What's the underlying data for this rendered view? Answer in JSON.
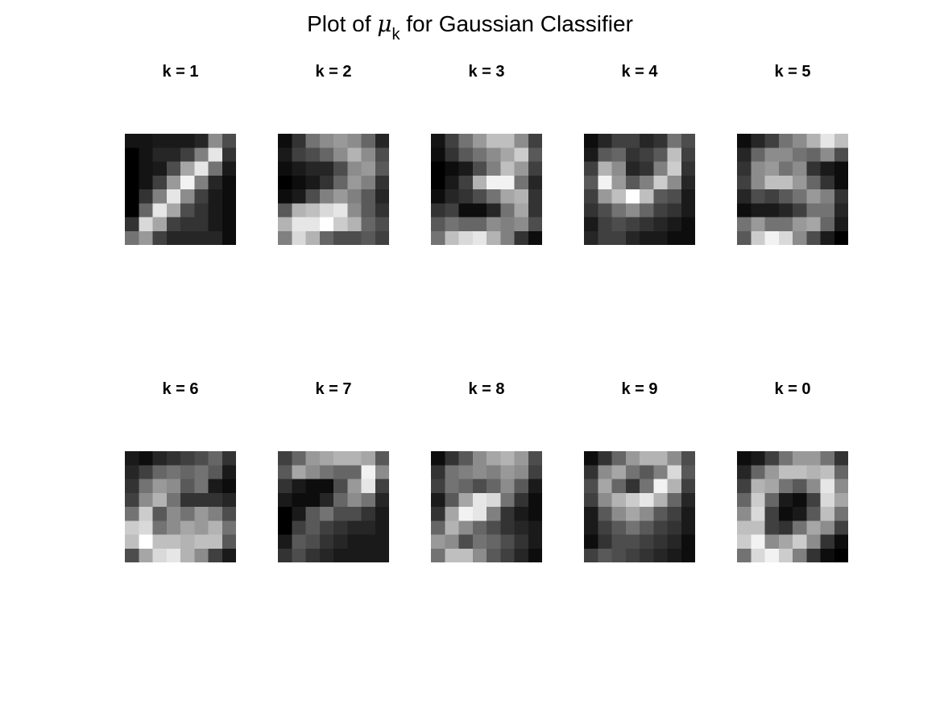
{
  "figure": {
    "title": {
      "prefix": "Plot of ",
      "symbol": "μ",
      "subscript": "k",
      "suffix": " for Gaussian Classifier"
    }
  },
  "chart_data": {
    "type": "heatmap",
    "title": "Plot of μk for Gaussian Classifier",
    "colormap": "gray",
    "value_range": [
      0,
      1
    ],
    "layout": {
      "rows": 2,
      "cols": 5
    },
    "panels": [
      {
        "label": "k = 1",
        "pixels": [
          [
            0.08,
            0.08,
            0.1,
            0.1,
            0.1,
            0.15,
            0.55,
            0.3
          ],
          [
            0.0,
            0.08,
            0.15,
            0.15,
            0.25,
            0.5,
            0.9,
            0.2
          ],
          [
            0.0,
            0.08,
            0.1,
            0.3,
            0.65,
            0.9,
            0.45,
            0.1
          ],
          [
            0.0,
            0.08,
            0.25,
            0.6,
            0.95,
            0.5,
            0.15,
            0.05
          ],
          [
            0.0,
            0.2,
            0.5,
            0.9,
            0.55,
            0.25,
            0.1,
            0.05
          ],
          [
            0.0,
            0.4,
            0.9,
            0.65,
            0.3,
            0.2,
            0.1,
            0.05
          ],
          [
            0.2,
            0.85,
            0.65,
            0.25,
            0.2,
            0.2,
            0.1,
            0.05
          ],
          [
            0.45,
            0.6,
            0.25,
            0.15,
            0.15,
            0.15,
            0.15,
            0.05
          ]
        ]
      },
      {
        "label": "k = 2",
        "pixels": [
          [
            0.05,
            0.2,
            0.45,
            0.55,
            0.6,
            0.55,
            0.4,
            0.15
          ],
          [
            0.1,
            0.25,
            0.3,
            0.4,
            0.55,
            0.7,
            0.55,
            0.3
          ],
          [
            0.05,
            0.1,
            0.15,
            0.15,
            0.3,
            0.55,
            0.6,
            0.35
          ],
          [
            0.0,
            0.05,
            0.1,
            0.2,
            0.4,
            0.6,
            0.5,
            0.2
          ],
          [
            0.05,
            0.1,
            0.3,
            0.5,
            0.6,
            0.5,
            0.35,
            0.15
          ],
          [
            0.35,
            0.7,
            0.75,
            0.85,
            0.9,
            0.55,
            0.35,
            0.2
          ],
          [
            0.7,
            0.9,
            0.9,
            1.0,
            0.8,
            0.7,
            0.4,
            0.3
          ],
          [
            0.5,
            0.85,
            0.7,
            0.4,
            0.3,
            0.3,
            0.35,
            0.25
          ]
        ]
      },
      {
        "label": "k = 3",
        "pixels": [
          [
            0.08,
            0.25,
            0.45,
            0.6,
            0.75,
            0.75,
            0.55,
            0.25
          ],
          [
            0.05,
            0.2,
            0.35,
            0.45,
            0.55,
            0.65,
            0.8,
            0.35
          ],
          [
            0.0,
            0.05,
            0.1,
            0.3,
            0.5,
            0.75,
            0.6,
            0.25
          ],
          [
            0.0,
            0.1,
            0.25,
            0.7,
            0.95,
            0.95,
            0.45,
            0.15
          ],
          [
            0.05,
            0.15,
            0.2,
            0.3,
            0.45,
            0.65,
            0.7,
            0.2
          ],
          [
            0.2,
            0.25,
            0.05,
            0.05,
            0.15,
            0.45,
            0.65,
            0.2
          ],
          [
            0.35,
            0.45,
            0.4,
            0.4,
            0.55,
            0.5,
            0.55,
            0.3
          ],
          [
            0.45,
            0.75,
            0.85,
            0.9,
            0.7,
            0.5,
            0.2,
            0.05
          ]
        ]
      },
      {
        "label": "k = 4",
        "pixels": [
          [
            0.05,
            0.15,
            0.25,
            0.25,
            0.15,
            0.2,
            0.45,
            0.3
          ],
          [
            0.1,
            0.35,
            0.4,
            0.2,
            0.25,
            0.35,
            0.75,
            0.25
          ],
          [
            0.25,
            0.7,
            0.55,
            0.15,
            0.2,
            0.5,
            0.8,
            0.2
          ],
          [
            0.35,
            0.95,
            0.6,
            0.35,
            0.5,
            0.8,
            0.55,
            0.15
          ],
          [
            0.25,
            0.6,
            0.75,
            1.0,
            0.75,
            0.35,
            0.3,
            0.1
          ],
          [
            0.2,
            0.3,
            0.45,
            0.55,
            0.4,
            0.25,
            0.2,
            0.1
          ],
          [
            0.1,
            0.25,
            0.3,
            0.25,
            0.2,
            0.15,
            0.1,
            0.05
          ],
          [
            0.15,
            0.25,
            0.25,
            0.15,
            0.1,
            0.1,
            0.05,
            0.05
          ]
        ]
      },
      {
        "label": "k = 5",
        "pixels": [
          [
            0.05,
            0.15,
            0.25,
            0.45,
            0.55,
            0.7,
            0.9,
            0.75
          ],
          [
            0.15,
            0.4,
            0.55,
            0.55,
            0.45,
            0.4,
            0.55,
            0.3
          ],
          [
            0.2,
            0.55,
            0.6,
            0.45,
            0.55,
            0.2,
            0.1,
            0.05
          ],
          [
            0.25,
            0.55,
            0.75,
            0.75,
            0.6,
            0.4,
            0.2,
            0.05
          ],
          [
            0.15,
            0.3,
            0.25,
            0.35,
            0.45,
            0.6,
            0.5,
            0.2
          ],
          [
            0.05,
            0.1,
            0.1,
            0.15,
            0.25,
            0.45,
            0.45,
            0.15
          ],
          [
            0.45,
            0.6,
            0.45,
            0.45,
            0.6,
            0.65,
            0.4,
            0.1
          ],
          [
            0.35,
            0.8,
            0.95,
            0.85,
            0.55,
            0.3,
            0.1,
            0.0
          ]
        ]
      },
      {
        "label": "k = 6",
        "pixels": [
          [
            0.1,
            0.05,
            0.15,
            0.2,
            0.25,
            0.3,
            0.4,
            0.2
          ],
          [
            0.15,
            0.25,
            0.4,
            0.45,
            0.4,
            0.45,
            0.35,
            0.1
          ],
          [
            0.2,
            0.45,
            0.6,
            0.55,
            0.35,
            0.45,
            0.1,
            0.05
          ],
          [
            0.25,
            0.55,
            0.7,
            0.45,
            0.2,
            0.2,
            0.2,
            0.15
          ],
          [
            0.45,
            0.8,
            0.35,
            0.55,
            0.45,
            0.6,
            0.5,
            0.3
          ],
          [
            0.8,
            0.85,
            0.45,
            0.55,
            0.65,
            0.6,
            0.7,
            0.45
          ],
          [
            0.75,
            1.0,
            0.75,
            0.75,
            0.7,
            0.75,
            0.75,
            0.35
          ],
          [
            0.3,
            0.65,
            0.85,
            0.9,
            0.7,
            0.55,
            0.25,
            0.1
          ]
        ]
      },
      {
        "label": "k = 7",
        "pixels": [
          [
            0.25,
            0.4,
            0.6,
            0.65,
            0.7,
            0.7,
            0.65,
            0.35
          ],
          [
            0.35,
            0.65,
            0.55,
            0.45,
            0.4,
            0.4,
            0.95,
            0.55
          ],
          [
            0.2,
            0.1,
            0.05,
            0.05,
            0.3,
            0.6,
            0.9,
            0.25
          ],
          [
            0.1,
            0.05,
            0.05,
            0.15,
            0.4,
            0.55,
            0.45,
            0.15
          ],
          [
            0.0,
            0.1,
            0.35,
            0.45,
            0.3,
            0.3,
            0.2,
            0.1
          ],
          [
            0.0,
            0.25,
            0.35,
            0.25,
            0.2,
            0.15,
            0.15,
            0.1
          ],
          [
            0.1,
            0.35,
            0.3,
            0.2,
            0.15,
            0.1,
            0.1,
            0.1
          ],
          [
            0.2,
            0.3,
            0.2,
            0.15,
            0.1,
            0.1,
            0.1,
            0.1
          ]
        ]
      },
      {
        "label": "k = 8",
        "pixels": [
          [
            0.05,
            0.2,
            0.35,
            0.55,
            0.65,
            0.7,
            0.6,
            0.3
          ],
          [
            0.2,
            0.45,
            0.5,
            0.55,
            0.5,
            0.6,
            0.55,
            0.25
          ],
          [
            0.25,
            0.45,
            0.4,
            0.3,
            0.4,
            0.55,
            0.35,
            0.1
          ],
          [
            0.1,
            0.35,
            0.65,
            0.9,
            0.85,
            0.45,
            0.2,
            0.05
          ],
          [
            0.2,
            0.65,
            0.95,
            0.9,
            0.5,
            0.2,
            0.1,
            0.05
          ],
          [
            0.4,
            0.7,
            0.55,
            0.4,
            0.3,
            0.2,
            0.15,
            0.1
          ],
          [
            0.6,
            0.55,
            0.3,
            0.45,
            0.4,
            0.3,
            0.2,
            0.1
          ],
          [
            0.45,
            0.75,
            0.75,
            0.55,
            0.35,
            0.25,
            0.15,
            0.05
          ]
        ]
      },
      {
        "label": "k = 9",
        "pixels": [
          [
            0.05,
            0.2,
            0.4,
            0.6,
            0.7,
            0.7,
            0.55,
            0.3
          ],
          [
            0.2,
            0.55,
            0.65,
            0.45,
            0.35,
            0.5,
            0.85,
            0.35
          ],
          [
            0.3,
            0.65,
            0.4,
            0.2,
            0.45,
            0.95,
            0.7,
            0.25
          ],
          [
            0.25,
            0.55,
            0.7,
            0.8,
            0.9,
            0.7,
            0.4,
            0.15
          ],
          [
            0.1,
            0.35,
            0.55,
            0.65,
            0.55,
            0.35,
            0.25,
            0.1
          ],
          [
            0.1,
            0.25,
            0.35,
            0.45,
            0.35,
            0.25,
            0.2,
            0.1
          ],
          [
            0.05,
            0.2,
            0.3,
            0.3,
            0.25,
            0.2,
            0.15,
            0.05
          ],
          [
            0.25,
            0.35,
            0.3,
            0.25,
            0.2,
            0.15,
            0.1,
            0.05
          ]
        ]
      },
      {
        "label": "k = 0",
        "pixels": [
          [
            0.05,
            0.1,
            0.25,
            0.45,
            0.6,
            0.6,
            0.45,
            0.2
          ],
          [
            0.15,
            0.4,
            0.6,
            0.75,
            0.75,
            0.7,
            0.75,
            0.4
          ],
          [
            0.25,
            0.7,
            0.65,
            0.45,
            0.35,
            0.55,
            0.9,
            0.55
          ],
          [
            0.4,
            0.8,
            0.4,
            0.1,
            0.05,
            0.25,
            0.85,
            0.65
          ],
          [
            0.55,
            0.85,
            0.25,
            0.05,
            0.1,
            0.35,
            0.75,
            0.45
          ],
          [
            0.75,
            0.75,
            0.25,
            0.2,
            0.45,
            0.65,
            0.55,
            0.25
          ],
          [
            0.8,
            0.95,
            0.55,
            0.65,
            0.8,
            0.55,
            0.2,
            0.05
          ],
          [
            0.45,
            0.85,
            0.95,
            0.8,
            0.5,
            0.2,
            0.05,
            0.0
          ]
        ]
      }
    ]
  }
}
